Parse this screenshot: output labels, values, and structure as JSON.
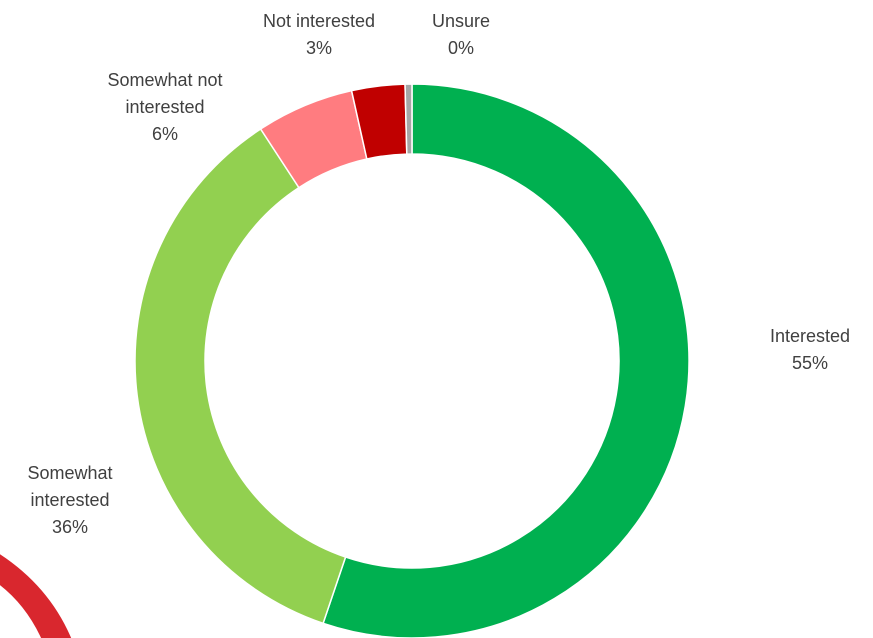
{
  "chart_data": {
    "type": "pie",
    "variant": "donut",
    "title": "",
    "start_angle_deg": 0,
    "direction": "clockwise",
    "slices": [
      {
        "name": "Interested",
        "percent_label": "55%",
        "value": 55.2,
        "color": "#00B050"
      },
      {
        "name": "Somewhat interested",
        "percent_label": "36%",
        "value": 35.6,
        "color": "#92D050"
      },
      {
        "name": "Somewhat not interested",
        "percent_label": "6%",
        "value": 5.7,
        "color": "#FF7C80"
      },
      {
        "name": "Not interested",
        "percent_label": "3%",
        "value": 3.1,
        "color": "#C00000"
      },
      {
        "name": "Unsure",
        "percent_label": "0%",
        "value": 0.4,
        "color": "#A6A6A6"
      }
    ],
    "label_lines": [
      {
        "slice": 0,
        "lines": [
          "Interested",
          "55%"
        ]
      },
      {
        "slice": 1,
        "lines": [
          "Somewhat",
          "interested",
          "36%"
        ]
      },
      {
        "slice": 2,
        "lines": [
          "Somewhat not",
          "interested",
          "6%"
        ]
      },
      {
        "slice": 3,
        "lines": [
          "Not interested",
          "3%"
        ]
      },
      {
        "slice": 4,
        "lines": [
          "Unsure",
          "0%"
        ]
      }
    ],
    "decoration_color": "#D9272E"
  }
}
